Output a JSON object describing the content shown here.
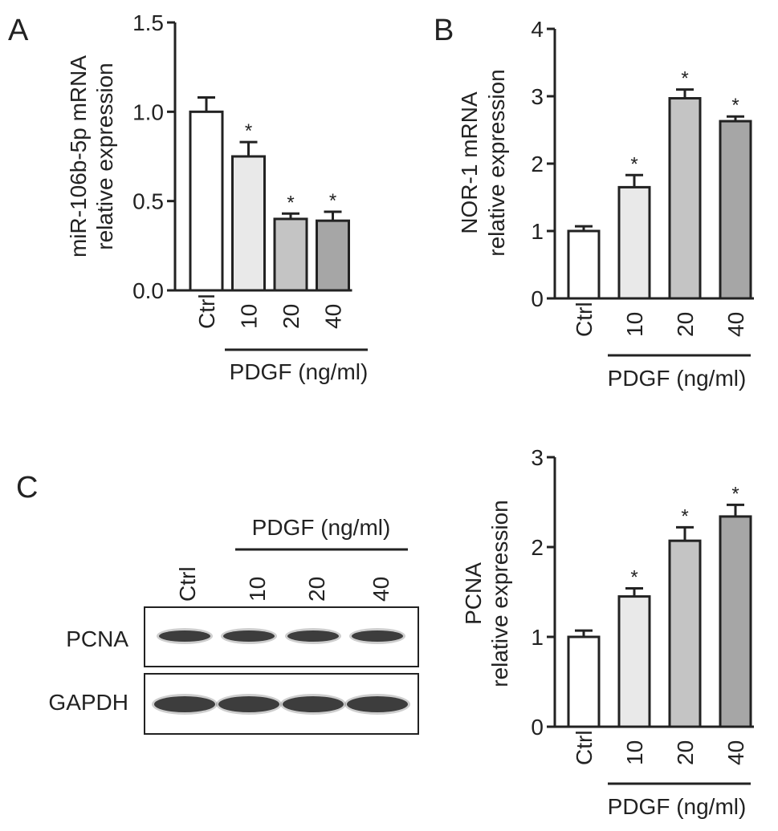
{
  "panels": {
    "A": "A",
    "B": "B",
    "C": "C"
  },
  "blot": {
    "treatment_label": "PDGF (ng/ml)",
    "lanes": [
      "Ctrl",
      "10",
      "20",
      "40"
    ],
    "rows": [
      {
        "label": "PCNA",
        "intensity": [
          1.0,
          1.0,
          1.0,
          1.0
        ]
      },
      {
        "label": "GAPDH",
        "intensity": [
          1.0,
          1.0,
          1.0,
          1.0
        ]
      }
    ]
  },
  "chart_data": [
    {
      "panel": "A",
      "type": "bar",
      "categories": [
        "Ctrl",
        "10",
        "20",
        "40"
      ],
      "values": [
        1.0,
        0.75,
        0.4,
        0.39
      ],
      "errors": [
        0.08,
        0.08,
        0.03,
        0.05
      ],
      "significance": [
        "",
        "*",
        "*",
        "*"
      ],
      "ylabel": [
        "miR-106b-5p mRNA",
        "relative expression"
      ],
      "xgroup_label": "PDGF (ng/ml)",
      "ylim": [
        0,
        1.5
      ],
      "yticks": [
        0.0,
        0.5,
        1.0,
        1.5
      ],
      "ytick_labels": [
        "0.0",
        "0.5",
        "1.0",
        "1.5"
      ],
      "colors": [
        "#ffffff",
        "#e9e9e9",
        "#c4c4c4",
        "#a6a6a6"
      ],
      "grid": false
    },
    {
      "panel": "B",
      "type": "bar",
      "categories": [
        "Ctrl",
        "10",
        "20",
        "40"
      ],
      "values": [
        1.0,
        1.65,
        2.97,
        2.63
      ],
      "errors": [
        0.07,
        0.18,
        0.13,
        0.07
      ],
      "significance": [
        "",
        "*",
        "*",
        "*"
      ],
      "ylabel": [
        "NOR-1 mRNA",
        "relative expression"
      ],
      "xgroup_label": "PDGF (ng/ml)",
      "ylim": [
        0,
        4
      ],
      "yticks": [
        0,
        1,
        2,
        3,
        4
      ],
      "ytick_labels": [
        "0",
        "1",
        "2",
        "3",
        "4"
      ],
      "colors": [
        "#ffffff",
        "#e9e9e9",
        "#c4c4c4",
        "#a6a6a6"
      ],
      "grid": false
    },
    {
      "panel": "C",
      "type": "bar",
      "categories": [
        "Ctrl",
        "10",
        "20",
        "40"
      ],
      "values": [
        1.0,
        1.45,
        2.07,
        2.34
      ],
      "errors": [
        0.07,
        0.09,
        0.15,
        0.13
      ],
      "significance": [
        "",
        "*",
        "*",
        "*"
      ],
      "ylabel": [
        "PCNA",
        "relative expression"
      ],
      "xgroup_label": "PDGF (ng/ml)",
      "ylim": [
        0,
        3
      ],
      "yticks": [
        0,
        1,
        2,
        3
      ],
      "ytick_labels": [
        "0",
        "1",
        "2",
        "3"
      ],
      "colors": [
        "#ffffff",
        "#e9e9e9",
        "#c4c4c4",
        "#a6a6a6"
      ],
      "grid": false
    }
  ]
}
